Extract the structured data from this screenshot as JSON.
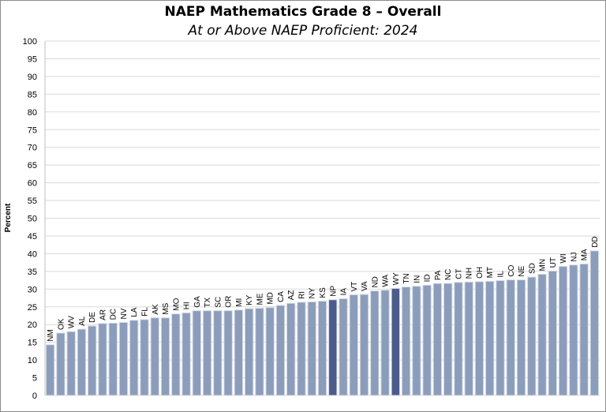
{
  "chart_data": {
    "type": "bar",
    "title": "NAEP Mathematics Grade 8 – Overall",
    "subtitle": "At or Above NAEP Proficient: 2024",
    "xlabel": "",
    "ylabel": "Percent",
    "ylim": [
      0,
      100
    ],
    "ytick_step": 5,
    "grid": true,
    "categories": [
      "NM",
      "OK",
      "WV",
      "AL",
      "DE",
      "AR",
      "DC",
      "NV",
      "LA",
      "FL",
      "AK",
      "MS",
      "MO",
      "HI",
      "GA",
      "TX",
      "SC",
      "OR",
      "MI",
      "KY",
      "ME",
      "MD",
      "CA",
      "AZ",
      "RI",
      "NY",
      "KS",
      "NP",
      "IA",
      "VT",
      "VA",
      "ND",
      "WA",
      "WY",
      "TN",
      "IN",
      "ID",
      "PA",
      "NC",
      "CT",
      "NH",
      "OH",
      "MT",
      "IL",
      "CO",
      "NE",
      "SD",
      "MN",
      "UT",
      "WI",
      "NJ",
      "MA",
      "DD"
    ],
    "values": [
      14.3,
      17.6,
      18,
      18.7,
      19.6,
      20.3,
      20.4,
      20.6,
      21.2,
      21.4,
      21.9,
      21.9,
      23,
      23.3,
      23.9,
      23.9,
      23.9,
      23.9,
      24.1,
      24.5,
      24.6,
      24.8,
      25.4,
      26,
      26.3,
      26.4,
      26.6,
      27,
      27.3,
      28.4,
      28.5,
      29.5,
      29.7,
      30.2,
      30.6,
      30.8,
      31.1,
      31.6,
      31.6,
      31.9,
      32,
      32.1,
      32.2,
      32.4,
      32.6,
      32.6,
      33.4,
      34.2,
      35.1,
      36.4,
      36.8,
      37.1,
      40.8
    ],
    "highlighted": [
      "NP",
      "WY"
    ],
    "colors": {
      "bar": "#8b9dbb",
      "highlight": "#4c5b8c",
      "bar_edge": "#d4dae6",
      "grid": "#d9d9d9"
    }
  }
}
